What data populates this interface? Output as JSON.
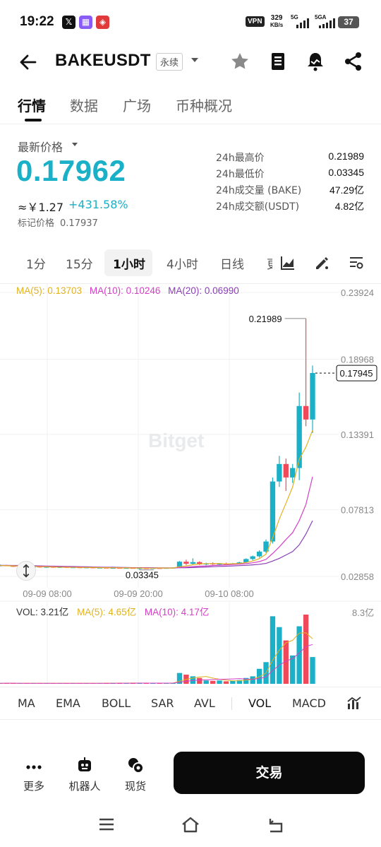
{
  "status_bar": {
    "time": "19:22",
    "vpn": "VPN",
    "speed_value": "329",
    "speed_unit": "KB/s",
    "sig1": "5G",
    "sig2": "5GA",
    "battery": "37"
  },
  "header": {
    "pair": "BAKEUSDT",
    "contract_type": "永续"
  },
  "tabs": [
    "行情",
    "数据",
    "广场",
    "币种概况"
  ],
  "price": {
    "label": "最新价格",
    "last": "0.17962",
    "cny": "≈￥1.27",
    "change": "+431.58%",
    "mark_label": "标记价格",
    "mark_value": "0.17937"
  },
  "stats": [
    {
      "label": "24h最高价",
      "value": "0.21989"
    },
    {
      "label": "24h最低价",
      "value": "0.03345"
    },
    {
      "label": "24h成交量 (BAKE)",
      "value": "47.29亿"
    },
    {
      "label": "24h成交额(USDT)",
      "value": "4.82亿"
    }
  ],
  "intervals": [
    "1分",
    "15分",
    "1小时",
    "4小时",
    "日线",
    "更"
  ],
  "ma_legend": {
    "ma5": "MA(5): 0.13703",
    "ma10": "MA(10): 0.10246",
    "ma20": "MA(20): 0.06990"
  },
  "vol_legend": {
    "vol": "VOL: 3.21亿",
    "ma5": "MA(5): 4.65亿",
    "ma10": "MA(10): 4.17亿",
    "max": "8.3亿"
  },
  "watermark": "Bitget",
  "colors": {
    "up": "#1ab0c7",
    "down": "#f04a5a",
    "ma5": "#e2b21f",
    "ma10": "#d43fc6",
    "ma20": "#8a3fb6"
  },
  "chart_data": {
    "type": "candlestick",
    "price_axis_ticks": [
      "0.23924",
      "0.18968",
      "0.13391",
      "0.07813",
      "0.02858"
    ],
    "time_axis_ticks": [
      "09-09 08:00",
      "09-09 20:00",
      "09-10 08:00"
    ],
    "high_marker": "0.21989",
    "low_marker": "0.03345",
    "current_price_tag": "0.17945",
    "interval": "1h",
    "candles": [
      {
        "o": 0.0365,
        "h": 0.0375,
        "l": 0.036,
        "c": 0.0368,
        "v": 0.07
      },
      {
        "o": 0.0368,
        "h": 0.0372,
        "l": 0.0362,
        "c": 0.0364,
        "v": 0.08
      },
      {
        "o": 0.0364,
        "h": 0.0368,
        "l": 0.0357,
        "c": 0.036,
        "v": 0.07
      },
      {
        "o": 0.036,
        "h": 0.0366,
        "l": 0.0355,
        "c": 0.0362,
        "v": 0.06
      },
      {
        "o": 0.0362,
        "h": 0.0365,
        "l": 0.0354,
        "c": 0.0357,
        "v": 0.07
      },
      {
        "o": 0.0357,
        "h": 0.0362,
        "l": 0.0352,
        "c": 0.0359,
        "v": 0.06
      },
      {
        "o": 0.0359,
        "h": 0.0363,
        "l": 0.0352,
        "c": 0.0355,
        "v": 0.07
      },
      {
        "o": 0.0355,
        "h": 0.036,
        "l": 0.035,
        "c": 0.0357,
        "v": 0.06
      },
      {
        "o": 0.0357,
        "h": 0.0361,
        "l": 0.035,
        "c": 0.0353,
        "v": 0.07
      },
      {
        "o": 0.0353,
        "h": 0.0358,
        "l": 0.0349,
        "c": 0.0356,
        "v": 0.06
      },
      {
        "o": 0.0356,
        "h": 0.0359,
        "l": 0.035,
        "c": 0.0352,
        "v": 0.06
      },
      {
        "o": 0.0352,
        "h": 0.0356,
        "l": 0.0348,
        "c": 0.0354,
        "v": 0.05
      },
      {
        "o": 0.0354,
        "h": 0.0358,
        "l": 0.0349,
        "c": 0.0351,
        "v": 0.06
      },
      {
        "o": 0.0351,
        "h": 0.0355,
        "l": 0.0347,
        "c": 0.0353,
        "v": 0.07
      },
      {
        "o": 0.0353,
        "h": 0.0356,
        "l": 0.0347,
        "c": 0.0349,
        "v": 0.08
      },
      {
        "o": 0.0349,
        "h": 0.0353,
        "l": 0.0346,
        "c": 0.0351,
        "v": 0.07
      },
      {
        "o": 0.0351,
        "h": 0.0354,
        "l": 0.0346,
        "c": 0.0348,
        "v": 0.1
      },
      {
        "o": 0.0348,
        "h": 0.0352,
        "l": 0.0345,
        "c": 0.035,
        "v": 0.09
      },
      {
        "o": 0.035,
        "h": 0.0353,
        "l": 0.0345,
        "c": 0.0347,
        "v": 0.08
      },
      {
        "o": 0.0347,
        "h": 0.0351,
        "l": 0.0345,
        "c": 0.0349,
        "v": 0.09
      },
      {
        "o": 0.0349,
        "h": 0.0352,
        "l": 0.0345,
        "c": 0.0346,
        "v": 0.1
      },
      {
        "o": 0.0346,
        "h": 0.035,
        "l": 0.03345,
        "c": 0.0348,
        "v": 0.09
      },
      {
        "o": 0.0348,
        "h": 0.0351,
        "l": 0.0345,
        "c": 0.0346,
        "v": 0.08
      },
      {
        "o": 0.0346,
        "h": 0.035,
        "l": 0.0344,
        "c": 0.0348,
        "v": 0.07
      },
      {
        "o": 0.0348,
        "h": 0.0352,
        "l": 0.0345,
        "c": 0.0347,
        "v": 0.08
      },
      {
        "o": 0.0347,
        "h": 0.0351,
        "l": 0.0344,
        "c": 0.0349,
        "v": 0.07
      },
      {
        "o": 0.0349,
        "h": 0.0353,
        "l": 0.0346,
        "c": 0.0351,
        "v": 0.08
      },
      {
        "o": 0.0351,
        "h": 0.04,
        "l": 0.0348,
        "c": 0.0395,
        "v": 1.3
      },
      {
        "o": 0.0395,
        "h": 0.041,
        "l": 0.037,
        "c": 0.038,
        "v": 1.1
      },
      {
        "o": 0.038,
        "h": 0.042,
        "l": 0.0372,
        "c": 0.0392,
        "v": 0.9
      },
      {
        "o": 0.0392,
        "h": 0.0398,
        "l": 0.037,
        "c": 0.0375,
        "v": 0.7
      },
      {
        "o": 0.0375,
        "h": 0.0388,
        "l": 0.0368,
        "c": 0.0382,
        "v": 0.4
      },
      {
        "o": 0.0382,
        "h": 0.039,
        "l": 0.0372,
        "c": 0.0376,
        "v": 0.35
      },
      {
        "o": 0.0376,
        "h": 0.0385,
        "l": 0.037,
        "c": 0.038,
        "v": 0.4
      },
      {
        "o": 0.038,
        "h": 0.0388,
        "l": 0.0374,
        "c": 0.0377,
        "v": 0.3
      },
      {
        "o": 0.0377,
        "h": 0.0386,
        "l": 0.0372,
        "c": 0.0383,
        "v": 0.35
      },
      {
        "o": 0.0383,
        "h": 0.0395,
        "l": 0.0378,
        "c": 0.039,
        "v": 0.45
      },
      {
        "o": 0.039,
        "h": 0.042,
        "l": 0.0385,
        "c": 0.0415,
        "v": 0.7
      },
      {
        "o": 0.0415,
        "h": 0.044,
        "l": 0.0405,
        "c": 0.0435,
        "v": 0.9
      },
      {
        "o": 0.0435,
        "h": 0.048,
        "l": 0.0425,
        "c": 0.047,
        "v": 1.8
      },
      {
        "o": 0.047,
        "h": 0.056,
        "l": 0.046,
        "c": 0.0545,
        "v": 2.6
      },
      {
        "o": 0.0545,
        "h": 0.102,
        "l": 0.053,
        "c": 0.099,
        "v": 8.1
      },
      {
        "o": 0.099,
        "h": 0.118,
        "l": 0.095,
        "c": 0.112,
        "v": 6.8
      },
      {
        "o": 0.112,
        "h": 0.116,
        "l": 0.092,
        "c": 0.102,
        "v": 5.2
      },
      {
        "o": 0.102,
        "h": 0.112,
        "l": 0.098,
        "c": 0.109,
        "v": 3.4
      },
      {
        "o": 0.109,
        "h": 0.165,
        "l": 0.1,
        "c": 0.155,
        "v": 6.9
      },
      {
        "o": 0.155,
        "h": 0.21989,
        "l": 0.14,
        "c": 0.145,
        "v": 8.3
      },
      {
        "o": 0.145,
        "h": 0.185,
        "l": 0.135,
        "c": 0.1795,
        "v": 3.21
      }
    ],
    "ma5": [
      0.0366,
      0.0365,
      0.0364,
      0.0362,
      0.0361,
      0.0359,
      0.0358,
      0.0357,
      0.0356,
      0.0355,
      0.0354,
      0.0353,
      0.0353,
      0.0352,
      0.0352,
      0.0351,
      0.0351,
      0.035,
      0.0349,
      0.0349,
      0.0348,
      0.0348,
      0.0347,
      0.0347,
      0.0348,
      0.0348,
      0.0348,
      0.0358,
      0.0364,
      0.0373,
      0.0378,
      0.0381,
      0.0381,
      0.0382,
      0.0378,
      0.038,
      0.0382,
      0.0389,
      0.04,
      0.0418,
      0.0451,
      0.0571,
      0.0712,
      0.0829,
      0.0949,
      0.1154,
      0.1246,
      0.137
    ],
    "ma10": [
      0.0367,
      0.0366,
      0.0365,
      0.0364,
      0.0363,
      0.0362,
      0.0361,
      0.036,
      0.0359,
      0.0358,
      0.0357,
      0.0356,
      0.0355,
      0.0354,
      0.0353,
      0.0353,
      0.0352,
      0.0351,
      0.0351,
      0.035,
      0.035,
      0.0349,
      0.0349,
      0.0348,
      0.0348,
      0.0348,
      0.0348,
      0.0352,
      0.0355,
      0.0359,
      0.0362,
      0.0364,
      0.0367,
      0.0369,
      0.0372,
      0.0375,
      0.0377,
      0.038,
      0.0387,
      0.0396,
      0.0412,
      0.0456,
      0.0505,
      0.056,
      0.061,
      0.07,
      0.082,
      0.1025
    ],
    "ma20": [
      0.0368,
      0.0368,
      0.0367,
      0.0367,
      0.0366,
      0.0365,
      0.0364,
      0.0363,
      0.0362,
      0.0361,
      0.036,
      0.0359,
      0.0358,
      0.0357,
      0.0356,
      0.0355,
      0.0354,
      0.0354,
      0.0353,
      0.0352,
      0.0351,
      0.0351,
      0.035,
      0.035,
      0.0349,
      0.0349,
      0.0349,
      0.035,
      0.0351,
      0.0352,
      0.0354,
      0.0356,
      0.0358,
      0.036,
      0.0362,
      0.0364,
      0.0366,
      0.0368,
      0.0372,
      0.0376,
      0.0382,
      0.04,
      0.042,
      0.0445,
      0.047,
      0.052,
      0.06,
      0.0699
    ],
    "ylim": [
      0.02858,
      0.23924
    ]
  },
  "indicators": [
    "MA",
    "EMA",
    "BOLL",
    "SAR",
    "AVL",
    "VOL",
    "MACD"
  ],
  "bottom_actions": [
    {
      "label": "更多"
    },
    {
      "label": "机器人"
    },
    {
      "label": "现货"
    }
  ],
  "trade_button": "交易"
}
